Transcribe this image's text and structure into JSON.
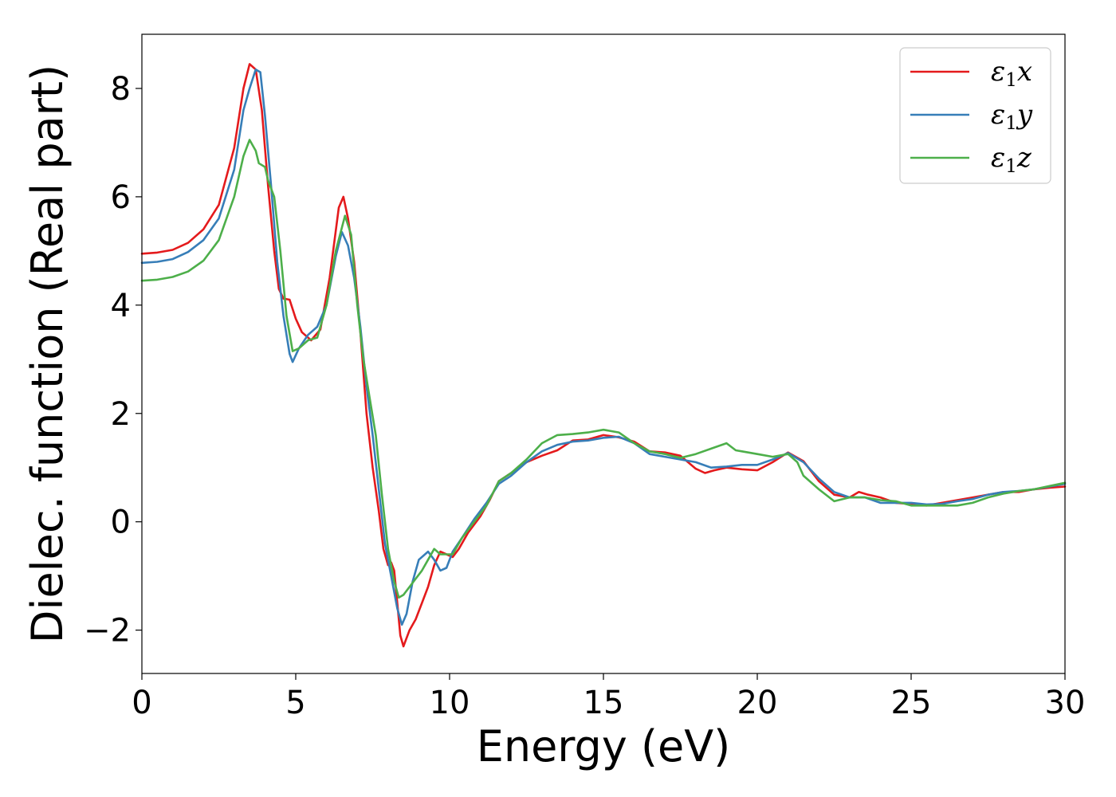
{
  "chart_data": {
    "type": "line",
    "xlabel": "Energy (eV)",
    "ylabel": "Dielec. function (Real part)",
    "xlim": [
      0,
      30
    ],
    "ylim": [
      -2.8,
      9.0
    ],
    "xticks": [
      0,
      5,
      10,
      15,
      20,
      25,
      30
    ],
    "xtick_labels": [
      "0",
      "5",
      "10",
      "15",
      "20",
      "25",
      "30"
    ],
    "yticks": [
      -2,
      0,
      2,
      4,
      6,
      8
    ],
    "ytick_labels": [
      "−2",
      "0",
      "2",
      "4",
      "6",
      "8"
    ],
    "grid": false,
    "legend_position": "top-right",
    "series": [
      {
        "name": "ε1x",
        "legend": {
          "base": "ε",
          "sub": "1",
          "var": "x"
        },
        "color": "#e41a1c",
        "points": [
          [
            0,
            4.95
          ],
          [
            0.5,
            4.97
          ],
          [
            1.0,
            5.02
          ],
          [
            1.5,
            5.15
          ],
          [
            2.0,
            5.4
          ],
          [
            2.5,
            5.85
          ],
          [
            3.0,
            6.9
          ],
          [
            3.3,
            8.0
          ],
          [
            3.5,
            8.45
          ],
          [
            3.7,
            8.35
          ],
          [
            3.9,
            7.6
          ],
          [
            4.1,
            6.2
          ],
          [
            4.3,
            5.0
          ],
          [
            4.45,
            4.3
          ],
          [
            4.6,
            4.12
          ],
          [
            4.8,
            4.1
          ],
          [
            5.0,
            3.75
          ],
          [
            5.2,
            3.5
          ],
          [
            5.5,
            3.35
          ],
          [
            5.8,
            3.55
          ],
          [
            6.1,
            4.5
          ],
          [
            6.4,
            5.8
          ],
          [
            6.55,
            6.0
          ],
          [
            6.7,
            5.6
          ],
          [
            6.9,
            4.8
          ],
          [
            7.1,
            3.5
          ],
          [
            7.3,
            2.0
          ],
          [
            7.5,
            1.0
          ],
          [
            7.7,
            0.2
          ],
          [
            7.85,
            -0.5
          ],
          [
            8.0,
            -0.8
          ],
          [
            8.1,
            -0.75
          ],
          [
            8.2,
            -0.9
          ],
          [
            8.3,
            -1.5
          ],
          [
            8.4,
            -2.1
          ],
          [
            8.5,
            -2.3
          ],
          [
            8.7,
            -2.0
          ],
          [
            8.9,
            -1.8
          ],
          [
            9.1,
            -1.5
          ],
          [
            9.3,
            -1.2
          ],
          [
            9.5,
            -0.8
          ],
          [
            9.7,
            -0.55
          ],
          [
            9.9,
            -0.6
          ],
          [
            10.1,
            -0.65
          ],
          [
            10.3,
            -0.5
          ],
          [
            10.6,
            -0.2
          ],
          [
            11.0,
            0.1
          ],
          [
            11.3,
            0.4
          ],
          [
            11.6,
            0.75
          ],
          [
            12.0,
            0.9
          ],
          [
            12.5,
            1.1
          ],
          [
            13.0,
            1.22
          ],
          [
            13.5,
            1.32
          ],
          [
            14.0,
            1.5
          ],
          [
            14.5,
            1.52
          ],
          [
            15.0,
            1.6
          ],
          [
            15.5,
            1.56
          ],
          [
            16.0,
            1.48
          ],
          [
            16.5,
            1.3
          ],
          [
            17.0,
            1.28
          ],
          [
            17.5,
            1.22
          ],
          [
            18.0,
            0.98
          ],
          [
            18.3,
            0.9
          ],
          [
            18.6,
            0.95
          ],
          [
            19.0,
            1.0
          ],
          [
            19.5,
            0.97
          ],
          [
            20.0,
            0.95
          ],
          [
            20.5,
            1.1
          ],
          [
            21.0,
            1.28
          ],
          [
            21.5,
            1.12
          ],
          [
            22.0,
            0.75
          ],
          [
            22.5,
            0.5
          ],
          [
            23.0,
            0.45
          ],
          [
            23.3,
            0.55
          ],
          [
            23.6,
            0.5
          ],
          [
            24.0,
            0.45
          ],
          [
            24.5,
            0.35
          ],
          [
            25.0,
            0.33
          ],
          [
            25.5,
            0.3
          ],
          [
            26.0,
            0.35
          ],
          [
            26.5,
            0.4
          ],
          [
            27.0,
            0.45
          ],
          [
            27.5,
            0.5
          ],
          [
            28.0,
            0.55
          ],
          [
            28.5,
            0.55
          ],
          [
            29.0,
            0.6
          ],
          [
            29.5,
            0.63
          ],
          [
            30.0,
            0.65
          ]
        ]
      },
      {
        "name": "ε1y",
        "legend": {
          "base": "ε",
          "sub": "1",
          "var": "y"
        },
        "color": "#377eb8",
        "points": [
          [
            0,
            4.78
          ],
          [
            0.5,
            4.8
          ],
          [
            1.0,
            4.85
          ],
          [
            1.5,
            4.98
          ],
          [
            2.0,
            5.2
          ],
          [
            2.5,
            5.6
          ],
          [
            3.0,
            6.5
          ],
          [
            3.3,
            7.6
          ],
          [
            3.5,
            8.0
          ],
          [
            3.7,
            8.35
          ],
          [
            3.85,
            8.3
          ],
          [
            4.0,
            7.5
          ],
          [
            4.2,
            6.2
          ],
          [
            4.4,
            4.8
          ],
          [
            4.6,
            3.8
          ],
          [
            4.8,
            3.1
          ],
          [
            4.9,
            2.95
          ],
          [
            5.1,
            3.2
          ],
          [
            5.4,
            3.45
          ],
          [
            5.7,
            3.6
          ],
          [
            6.0,
            4.0
          ],
          [
            6.3,
            4.9
          ],
          [
            6.5,
            5.35
          ],
          [
            6.7,
            5.1
          ],
          [
            6.9,
            4.5
          ],
          [
            7.1,
            3.6
          ],
          [
            7.3,
            2.5
          ],
          [
            7.5,
            1.6
          ],
          [
            7.7,
            0.6
          ],
          [
            7.9,
            -0.4
          ],
          [
            8.1,
            -1.0
          ],
          [
            8.3,
            -1.6
          ],
          [
            8.45,
            -1.9
          ],
          [
            8.6,
            -1.7
          ],
          [
            8.8,
            -1.1
          ],
          [
            9.0,
            -0.7
          ],
          [
            9.3,
            -0.55
          ],
          [
            9.5,
            -0.7
          ],
          [
            9.7,
            -0.9
          ],
          [
            9.9,
            -0.85
          ],
          [
            10.1,
            -0.55
          ],
          [
            10.4,
            -0.3
          ],
          [
            10.8,
            0.05
          ],
          [
            11.2,
            0.35
          ],
          [
            11.6,
            0.7
          ],
          [
            12.0,
            0.85
          ],
          [
            12.5,
            1.1
          ],
          [
            13.0,
            1.3
          ],
          [
            13.5,
            1.42
          ],
          [
            14.0,
            1.48
          ],
          [
            14.5,
            1.5
          ],
          [
            15.0,
            1.55
          ],
          [
            15.5,
            1.57
          ],
          [
            16.0,
            1.45
          ],
          [
            16.5,
            1.25
          ],
          [
            17.0,
            1.2
          ],
          [
            17.5,
            1.15
          ],
          [
            18.0,
            1.1
          ],
          [
            18.5,
            1.0
          ],
          [
            19.0,
            1.02
          ],
          [
            19.5,
            1.05
          ],
          [
            20.0,
            1.05
          ],
          [
            20.5,
            1.15
          ],
          [
            21.0,
            1.27
          ],
          [
            21.5,
            1.1
          ],
          [
            22.0,
            0.8
          ],
          [
            22.5,
            0.55
          ],
          [
            23.0,
            0.45
          ],
          [
            23.5,
            0.45
          ],
          [
            24.0,
            0.35
          ],
          [
            24.5,
            0.35
          ],
          [
            25.0,
            0.35
          ],
          [
            25.5,
            0.32
          ],
          [
            26.0,
            0.33
          ],
          [
            26.5,
            0.38
          ],
          [
            27.0,
            0.42
          ],
          [
            27.5,
            0.5
          ],
          [
            28.0,
            0.55
          ],
          [
            28.5,
            0.57
          ],
          [
            29.0,
            0.6
          ],
          [
            29.5,
            0.65
          ],
          [
            30.0,
            0.7
          ]
        ]
      },
      {
        "name": "ε1z",
        "legend": {
          "base": "ε",
          "sub": "1",
          "var": "z"
        },
        "color": "#4daf4a",
        "points": [
          [
            0,
            4.45
          ],
          [
            0.5,
            4.47
          ],
          [
            1.0,
            4.52
          ],
          [
            1.5,
            4.62
          ],
          [
            2.0,
            4.82
          ],
          [
            2.5,
            5.2
          ],
          [
            3.0,
            6.0
          ],
          [
            3.3,
            6.75
          ],
          [
            3.5,
            7.05
          ],
          [
            3.7,
            6.85
          ],
          [
            3.8,
            6.62
          ],
          [
            4.0,
            6.55
          ],
          [
            4.1,
            6.3
          ],
          [
            4.3,
            6.0
          ],
          [
            4.5,
            5.0
          ],
          [
            4.7,
            3.8
          ],
          [
            4.9,
            3.15
          ],
          [
            5.1,
            3.2
          ],
          [
            5.4,
            3.35
          ],
          [
            5.7,
            3.4
          ],
          [
            6.0,
            4.0
          ],
          [
            6.3,
            5.0
          ],
          [
            6.6,
            5.65
          ],
          [
            6.8,
            5.3
          ],
          [
            7.0,
            4.0
          ],
          [
            7.2,
            3.0
          ],
          [
            7.4,
            2.3
          ],
          [
            7.6,
            1.6
          ],
          [
            7.8,
            0.5
          ],
          [
            8.0,
            -0.5
          ],
          [
            8.2,
            -1.1
          ],
          [
            8.35,
            -1.4
          ],
          [
            8.5,
            -1.35
          ],
          [
            8.7,
            -1.2
          ],
          [
            8.9,
            -1.05
          ],
          [
            9.1,
            -0.9
          ],
          [
            9.3,
            -0.7
          ],
          [
            9.5,
            -0.5
          ],
          [
            9.7,
            -0.6
          ],
          [
            9.9,
            -0.6
          ],
          [
            10.1,
            -0.6
          ],
          [
            10.4,
            -0.3
          ],
          [
            10.8,
            0.0
          ],
          [
            11.2,
            0.3
          ],
          [
            11.6,
            0.75
          ],
          [
            12.0,
            0.9
          ],
          [
            12.5,
            1.15
          ],
          [
            13.0,
            1.45
          ],
          [
            13.5,
            1.6
          ],
          [
            14.0,
            1.62
          ],
          [
            14.5,
            1.65
          ],
          [
            15.0,
            1.7
          ],
          [
            15.5,
            1.65
          ],
          [
            16.0,
            1.45
          ],
          [
            16.5,
            1.3
          ],
          [
            17.0,
            1.25
          ],
          [
            17.5,
            1.18
          ],
          [
            18.0,
            1.25
          ],
          [
            18.5,
            1.35
          ],
          [
            19.0,
            1.45
          ],
          [
            19.3,
            1.32
          ],
          [
            19.5,
            1.3
          ],
          [
            20.0,
            1.25
          ],
          [
            20.5,
            1.2
          ],
          [
            21.0,
            1.25
          ],
          [
            21.3,
            1.1
          ],
          [
            21.5,
            0.85
          ],
          [
            22.0,
            0.6
          ],
          [
            22.5,
            0.38
          ],
          [
            23.0,
            0.45
          ],
          [
            23.5,
            0.45
          ],
          [
            24.0,
            0.4
          ],
          [
            24.5,
            0.38
          ],
          [
            25.0,
            0.3
          ],
          [
            25.5,
            0.3
          ],
          [
            26.0,
            0.3
          ],
          [
            26.5,
            0.3
          ],
          [
            27.0,
            0.35
          ],
          [
            27.5,
            0.45
          ],
          [
            28.0,
            0.52
          ],
          [
            28.5,
            0.57
          ],
          [
            29.0,
            0.6
          ],
          [
            29.5,
            0.66
          ],
          [
            30.0,
            0.72
          ]
        ]
      }
    ]
  }
}
